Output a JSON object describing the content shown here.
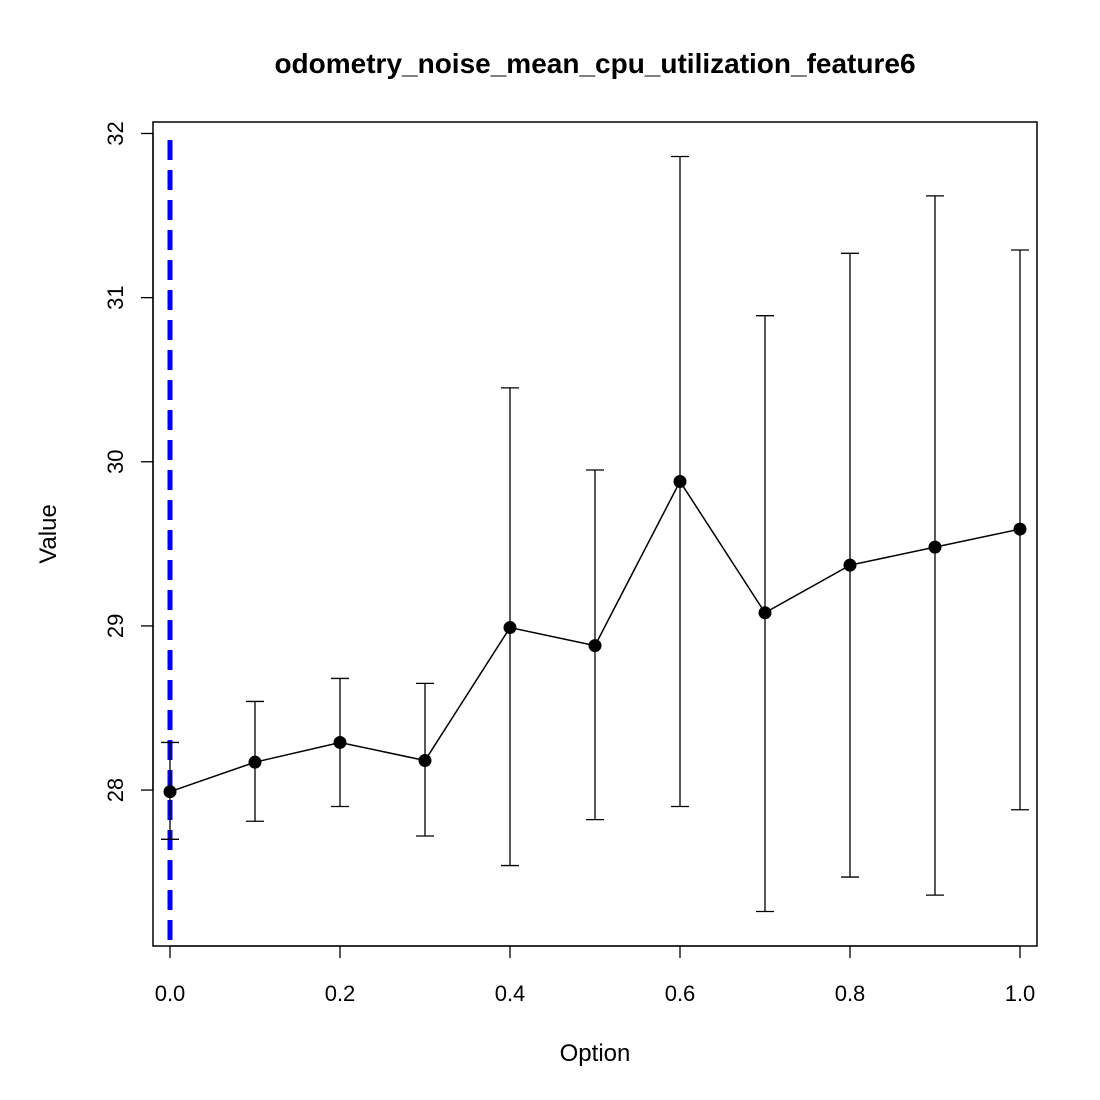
{
  "chart_data": {
    "type": "line",
    "title": "odometry_noise_mean_cpu_utilization_feature6",
    "xlabel": "Option",
    "ylabel": "Value",
    "xlim": [
      -0.02,
      1.02
    ],
    "ylim": [
      27.05,
      32.07
    ],
    "x_ticks": [
      0.0,
      0.2,
      0.4,
      0.6,
      0.8,
      1.0
    ],
    "x_tick_labels": [
      "0.0",
      "0.2",
      "0.4",
      "0.6",
      "0.8",
      "1.0"
    ],
    "y_ticks": [
      28,
      29,
      30,
      31,
      32
    ],
    "y_tick_labels": [
      "28",
      "29",
      "30",
      "31",
      "32"
    ],
    "grid": false,
    "series": [
      {
        "x": [
          0.0,
          0.1,
          0.2,
          0.3,
          0.4,
          0.5,
          0.6,
          0.7,
          0.8,
          0.9,
          1.0
        ],
        "y": [
          27.99,
          28.17,
          28.29,
          28.18,
          28.99,
          28.88,
          29.88,
          29.08,
          29.37,
          29.48,
          29.59
        ],
        "lower": [
          27.7,
          27.81,
          27.9,
          27.72,
          27.54,
          27.82,
          27.9,
          27.26,
          27.47,
          27.36,
          27.88
        ],
        "upper": [
          28.29,
          28.54,
          28.68,
          28.65,
          30.45,
          29.95,
          31.86,
          30.89,
          31.27,
          31.62,
          31.29
        ],
        "color": "#000000"
      }
    ],
    "reference_line": {
      "x": 0.0,
      "color": "#0000ff",
      "style": "dashed"
    }
  }
}
